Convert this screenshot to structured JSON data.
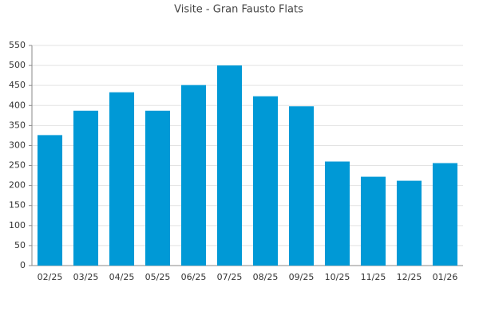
{
  "chart_data": {
    "type": "bar",
    "title": "Visite - Gran Fausto Flats",
    "categories": [
      "02/25",
      "03/25",
      "04/25",
      "05/25",
      "06/25",
      "07/25",
      "08/25",
      "09/25",
      "10/25",
      "11/25",
      "12/25",
      "01/26"
    ],
    "values": [
      326,
      387,
      433,
      387,
      451,
      500,
      423,
      398,
      260,
      222,
      212,
      256
    ],
    "color": "#0099d6",
    "ylim": [
      0,
      550
    ],
    "yticks": [
      0,
      50,
      100,
      150,
      200,
      250,
      300,
      350,
      400,
      450,
      500,
      550
    ],
    "grid": true
  }
}
